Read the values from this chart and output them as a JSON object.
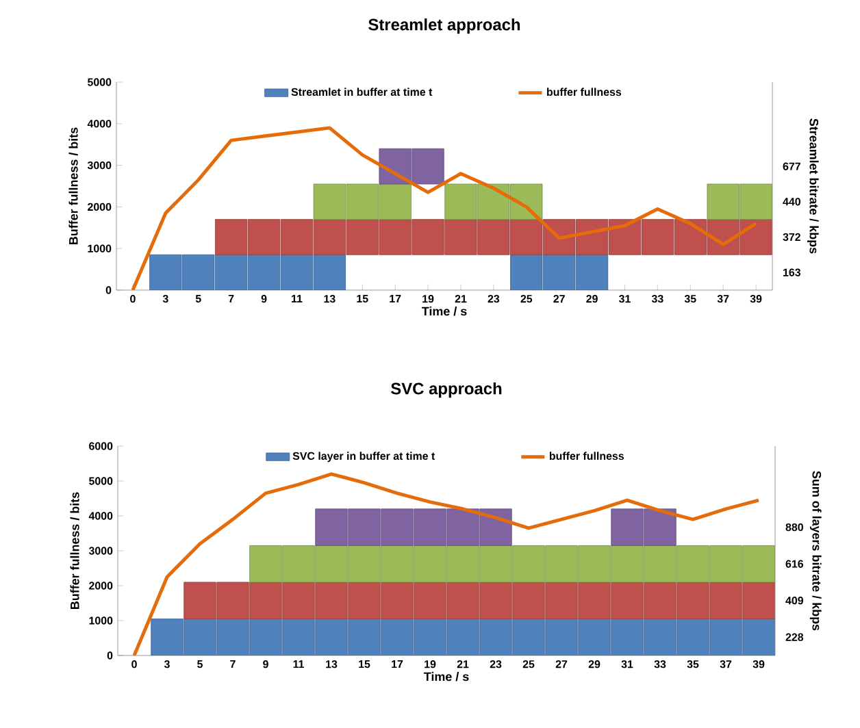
{
  "chart_data": [
    {
      "type": "bar",
      "title": "Streamlet approach",
      "xlabel": "Time / s",
      "ylabel": "Buffer fullness / bits",
      "y2label": "Streamlet bitrate / kbps",
      "legend": "top",
      "categories": [
        "0",
        "3",
        "5",
        "7",
        "9",
        "11",
        "13",
        "15",
        "17",
        "19",
        "21",
        "23",
        "25",
        "27",
        "29",
        "31",
        "33",
        "35",
        "37",
        "39"
      ],
      "ylim": [
        0,
        5000
      ],
      "yticks": [
        0,
        1000,
        2000,
        3000,
        4000,
        5000
      ],
      "annotations": [
        "163",
        "372",
        "440",
        "677"
      ],
      "series": [
        {
          "name": "Streamlet in buffer at time t",
          "color": "#4f81bd",
          "base": [
            null,
            0,
            0,
            0,
            0,
            0,
            0,
            null,
            null,
            null,
            null,
            null,
            0,
            0,
            0,
            null,
            null,
            null,
            null,
            null
          ],
          "values": [
            null,
            850,
            850,
            850,
            850,
            850,
            850,
            null,
            null,
            null,
            null,
            null,
            850,
            850,
            850,
            null,
            null,
            null,
            null,
            null
          ]
        },
        {
          "color": "#c0504d",
          "base": [
            null,
            null,
            null,
            850,
            850,
            850,
            850,
            850,
            850,
            850,
            850,
            850,
            850,
            850,
            850,
            850,
            850,
            850,
            850,
            850
          ],
          "values": [
            null,
            null,
            null,
            850,
            850,
            850,
            850,
            850,
            850,
            850,
            850,
            850,
            850,
            850,
            850,
            850,
            850,
            850,
            850,
            850
          ]
        },
        {
          "color": "#9bbb59",
          "base": [
            null,
            null,
            null,
            null,
            null,
            null,
            1700,
            1700,
            1700,
            null,
            1700,
            1700,
            1700,
            null,
            null,
            null,
            null,
            null,
            1700,
            1700
          ],
          "values": [
            null,
            null,
            null,
            null,
            null,
            null,
            850,
            850,
            850,
            null,
            850,
            850,
            850,
            null,
            null,
            null,
            null,
            null,
            850,
            850
          ]
        },
        {
          "color": "#8064a2",
          "base": [
            null,
            null,
            null,
            null,
            null,
            null,
            null,
            null,
            2550,
            2550,
            null,
            null,
            null,
            null,
            null,
            null,
            null,
            null,
            null,
            null
          ],
          "values": [
            null,
            null,
            null,
            null,
            null,
            null,
            null,
            null,
            850,
            850,
            null,
            null,
            null,
            null,
            null,
            null,
            null,
            null,
            null,
            null
          ]
        },
        {
          "name": "buffer fullness",
          "type": "line",
          "color": "#e46c0a",
          "values": [
            0,
            1850,
            2650,
            3600,
            3700,
            3800,
            3900,
            3250,
            2800,
            2350,
            2800,
            2450,
            2000,
            1250,
            1400,
            1550,
            1950,
            1600,
            1100,
            1600
          ]
        }
      ]
    },
    {
      "type": "bar",
      "title": "SVC approach",
      "xlabel": "Time / s",
      "ylabel": "Buffer fullness / bits",
      "y2label": "Sum of layers bitrate / kbps",
      "legend": "top",
      "categories": [
        "0",
        "3",
        "5",
        "7",
        "9",
        "11",
        "13",
        "15",
        "17",
        "19",
        "21",
        "23",
        "25",
        "27",
        "29",
        "31",
        "33",
        "35",
        "37",
        "39"
      ],
      "ylim": [
        0,
        6000
      ],
      "yticks": [
        0,
        1000,
        2000,
        3000,
        4000,
        5000,
        6000
      ],
      "annotations": [
        "228",
        "409",
        "616",
        "880"
      ],
      "series": [
        {
          "name": "SVC layer in buffer at time t",
          "color": "#4f81bd",
          "base": [
            null,
            0,
            0,
            0,
            0,
            0,
            0,
            0,
            0,
            0,
            0,
            0,
            0,
            0,
            0,
            0,
            0,
            0,
            0,
            0
          ],
          "values": [
            null,
            1050,
            1050,
            1050,
            1050,
            1050,
            1050,
            1050,
            1050,
            1050,
            1050,
            1050,
            1050,
            1050,
            1050,
            1050,
            1050,
            1050,
            1050,
            1050
          ]
        },
        {
          "color": "#c0504d",
          "base": [
            null,
            null,
            1050,
            1050,
            1050,
            1050,
            1050,
            1050,
            1050,
            1050,
            1050,
            1050,
            1050,
            1050,
            1050,
            1050,
            1050,
            1050,
            1050,
            1050
          ],
          "values": [
            null,
            null,
            1050,
            1050,
            1050,
            1050,
            1050,
            1050,
            1050,
            1050,
            1050,
            1050,
            1050,
            1050,
            1050,
            1050,
            1050,
            1050,
            1050,
            1050
          ]
        },
        {
          "color": "#9bbb59",
          "base": [
            null,
            null,
            null,
            null,
            2100,
            2100,
            2100,
            2100,
            2100,
            2100,
            2100,
            2100,
            2100,
            2100,
            2100,
            2100,
            2100,
            2100,
            2100,
            2100
          ],
          "values": [
            null,
            null,
            null,
            null,
            1050,
            1050,
            1050,
            1050,
            1050,
            1050,
            1050,
            1050,
            1050,
            1050,
            1050,
            1050,
            1050,
            1050,
            1050,
            1050
          ]
        },
        {
          "color": "#8064a2",
          "base": [
            null,
            null,
            null,
            null,
            null,
            null,
            3150,
            3150,
            3150,
            3150,
            3150,
            3150,
            null,
            null,
            null,
            3150,
            3150,
            null,
            null,
            null
          ],
          "values": [
            null,
            null,
            null,
            null,
            null,
            null,
            1050,
            1050,
            1050,
            1050,
            1050,
            1050,
            null,
            null,
            null,
            1050,
            1050,
            null,
            null,
            null
          ]
        },
        {
          "name": "buffer fullness",
          "type": "line",
          "color": "#e46c0a",
          "values": [
            0,
            2250,
            3200,
            3900,
            4650,
            4900,
            5200,
            4950,
            4650,
            4400,
            4200,
            3950,
            3650,
            3900,
            4150,
            4450,
            4150,
            3900,
            4200,
            4450
          ]
        }
      ]
    }
  ]
}
